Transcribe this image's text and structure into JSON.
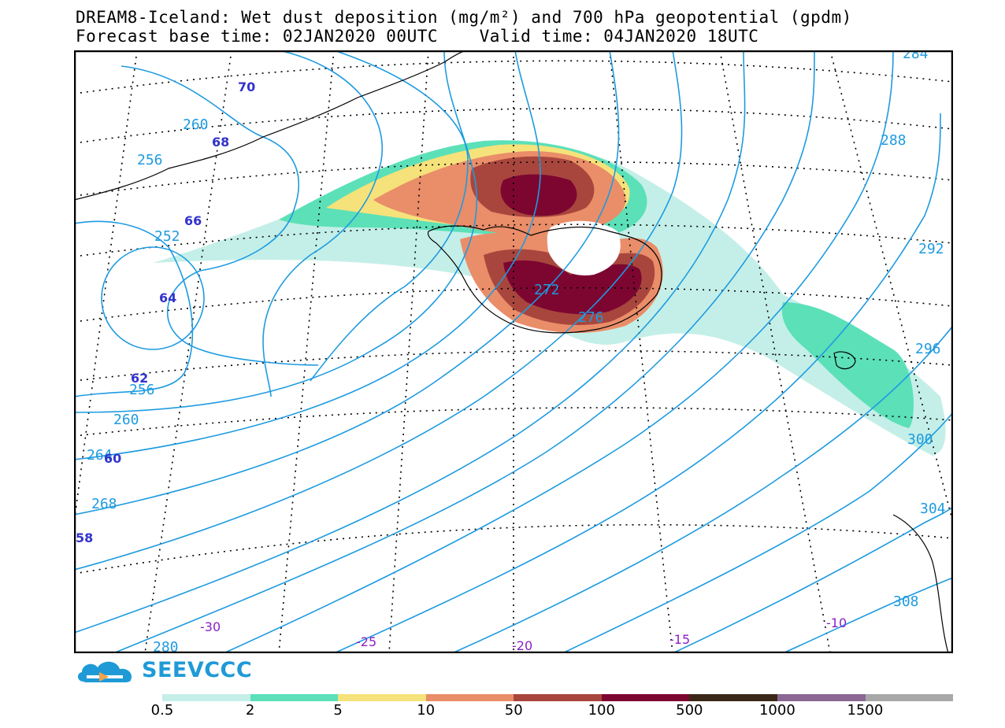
{
  "header": {
    "title_line1": "DREAM8-Iceland: Wet dust deposition (mg/m²) and 700 hPa geopotential (gpdm)",
    "title_line2": "Forecast base time: 02JAN2020 00UTC    Valid time: 04JAN2020 18UTC"
  },
  "colors": {
    "geopotential_contour": "#1e9be0",
    "latitude_label": "#3333cc",
    "longitude_label": "#8a1fc4",
    "coastline": "#000000",
    "map_frame": "#000000",
    "logo": "#1f9ad6"
  },
  "geopotential_labels": [
    "252",
    "256",
    "256",
    "260",
    "260",
    "264",
    "268",
    "272",
    "276",
    "280",
    "284",
    "288",
    "292",
    "296",
    "300",
    "304",
    "308"
  ],
  "latitude_labels": [
    "70",
    "68",
    "66",
    "64",
    "62",
    "60",
    "58"
  ],
  "longitude_labels": [
    "-30",
    "-25",
    "-20",
    "-15",
    "-10"
  ],
  "legend": {
    "levels": [
      "0.5",
      "2",
      "5",
      "10",
      "50",
      "100",
      "500",
      "1000",
      "1500"
    ],
    "colors": [
      "#c4efe8",
      "#5ce0b8",
      "#f6e27a",
      "#ea8d69",
      "#a8463e",
      "#7d0631",
      "#3b2718",
      "#8b6794",
      "#a8a8a8"
    ]
  },
  "logo": {
    "text": "SEEVCCC",
    "icon": "cloud-icon"
  }
}
